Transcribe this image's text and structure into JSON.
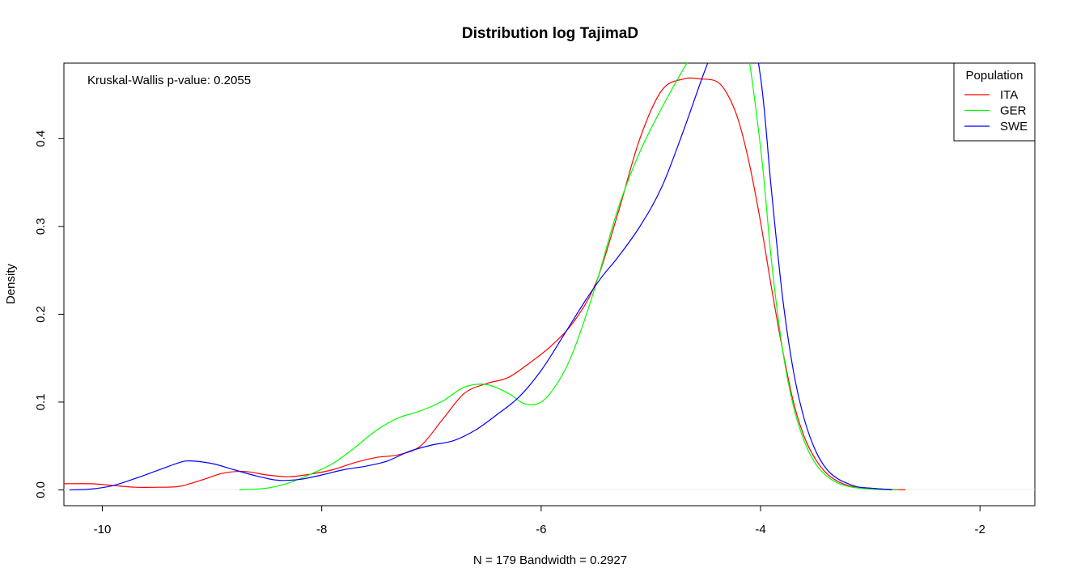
{
  "chart_data": {
    "type": "line",
    "title": "Distribution log TajimaD",
    "xlabel": "N = 179   Bandwidth = 0.2927",
    "ylabel": "Density",
    "annotation": "Kruskal-Wallis p-value: 0.2055",
    "xlim": [
      -10.35,
      -1.5
    ],
    "ylim": [
      -0.018,
      0.486
    ],
    "x_ticks": [
      -10,
      -8,
      -6,
      -4,
      -2
    ],
    "y_ticks": [
      0.0,
      0.1,
      0.2,
      0.3,
      0.4
    ],
    "x_tick_labels": [
      "-10",
      "-8",
      "-6",
      "-4",
      "-2"
    ],
    "y_tick_labels": [
      "0.0",
      "0.1",
      "0.2",
      "0.3",
      "0.4"
    ],
    "legend": {
      "title": "Population",
      "position": "top-right"
    },
    "series": [
      {
        "name": "ITA",
        "color": "#ff0000",
        "x": [
          -10.35,
          -10.1,
          -9.9,
          -9.7,
          -9.5,
          -9.3,
          -9.1,
          -8.9,
          -8.7,
          -8.5,
          -8.3,
          -8.1,
          -7.9,
          -7.7,
          -7.5,
          -7.3,
          -7.1,
          -6.9,
          -6.7,
          -6.5,
          -6.3,
          -6.1,
          -5.9,
          -5.7,
          -5.5,
          -5.3,
          -5.1,
          -4.9,
          -4.7,
          -4.55,
          -4.4,
          -4.3,
          -4.2,
          -4.1,
          -4.0,
          -3.9,
          -3.8,
          -3.7,
          -3.6,
          -3.5,
          -3.4,
          -3.3,
          -3.2,
          -3.1,
          -3.0,
          -2.9,
          -2.8,
          -2.68
        ],
        "y": [
          0.007,
          0.007,
          0.005,
          0.003,
          0.003,
          0.004,
          0.011,
          0.019,
          0.021,
          0.017,
          0.015,
          0.018,
          0.023,
          0.031,
          0.037,
          0.04,
          0.05,
          0.08,
          0.11,
          0.121,
          0.128,
          0.145,
          0.165,
          0.192,
          0.236,
          0.315,
          0.4,
          0.455,
          0.468,
          0.468,
          0.465,
          0.45,
          0.42,
          0.37,
          0.305,
          0.23,
          0.16,
          0.1,
          0.06,
          0.035,
          0.019,
          0.01,
          0.005,
          0.003,
          0.002,
          0.001,
          0.0005,
          0.0002
        ]
      },
      {
        "name": "GER",
        "color": "#00ff00",
        "x": [
          -8.75,
          -8.5,
          -8.3,
          -8.1,
          -7.9,
          -7.7,
          -7.5,
          -7.3,
          -7.1,
          -6.9,
          -6.7,
          -6.5,
          -6.3,
          -6.15,
          -6.0,
          -5.85,
          -5.7,
          -5.5,
          -5.3,
          -5.1,
          -4.9,
          -4.7,
          -4.5,
          -4.3,
          -4.15,
          -4.0,
          -3.9,
          -3.8,
          -3.7,
          -3.6,
          -3.5,
          -3.4,
          -3.3,
          -3.2,
          -3.1,
          -3.0,
          -2.9,
          -2.75
        ],
        "y": [
          0.0,
          0.002,
          0.008,
          0.018,
          0.03,
          0.048,
          0.068,
          0.082,
          0.09,
          0.101,
          0.117,
          0.12,
          0.11,
          0.098,
          0.1,
          0.122,
          0.16,
          0.234,
          0.32,
          0.385,
          0.435,
          0.48,
          0.52,
          0.54,
          0.52,
          0.39,
          0.26,
          0.16,
          0.095,
          0.055,
          0.03,
          0.016,
          0.008,
          0.004,
          0.002,
          0.001,
          0.0004,
          0.0001
        ]
      },
      {
        "name": "SWE",
        "color": "#0000ff",
        "x": [
          -10.3,
          -10.1,
          -9.9,
          -9.7,
          -9.5,
          -9.3,
          -9.2,
          -9.0,
          -8.8,
          -8.6,
          -8.4,
          -8.2,
          -8.0,
          -7.8,
          -7.6,
          -7.4,
          -7.2,
          -7.0,
          -6.8,
          -6.6,
          -6.4,
          -6.2,
          -6.0,
          -5.8,
          -5.6,
          -5.45,
          -5.3,
          -5.1,
          -4.9,
          -4.7,
          -4.5,
          -4.3,
          -4.15,
          -4.0,
          -3.9,
          -3.8,
          -3.7,
          -3.6,
          -3.5,
          -3.4,
          -3.3,
          -3.2,
          -3.1,
          -3.0,
          -2.9,
          -2.8
        ],
        "y": [
          0.0,
          0.001,
          0.005,
          0.013,
          0.022,
          0.031,
          0.033,
          0.03,
          0.023,
          0.016,
          0.011,
          0.012,
          0.017,
          0.023,
          0.027,
          0.033,
          0.044,
          0.051,
          0.056,
          0.068,
          0.086,
          0.106,
          0.136,
          0.175,
          0.215,
          0.242,
          0.265,
          0.3,
          0.345,
          0.41,
          0.48,
          0.54,
          0.56,
          0.47,
          0.34,
          0.22,
          0.135,
          0.08,
          0.045,
          0.024,
          0.013,
          0.007,
          0.003,
          0.002,
          0.001,
          0.0003
        ]
      }
    ]
  }
}
